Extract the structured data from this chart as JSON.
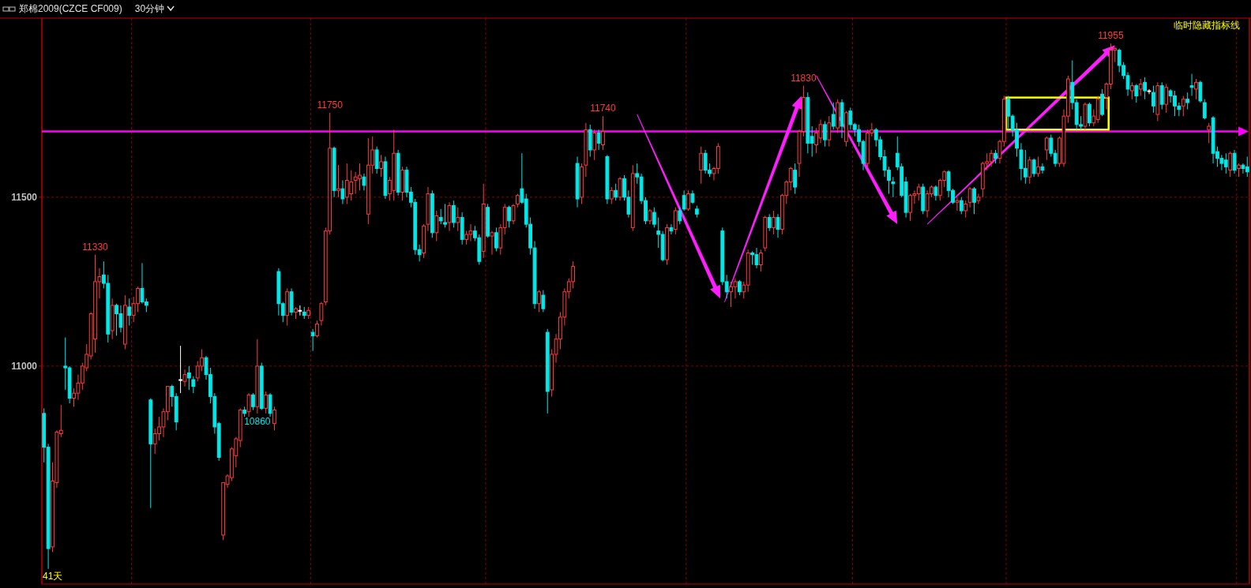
{
  "chart_data": {
    "type": "candlestick",
    "title": "郑棉2009(CZCE CF009)",
    "subtitle": "30分钟",
    "categories": [
      null,
      null,
      null,
      null,
      null,
      null,
      null,
      null,
      null,
      null,
      null,
      null,
      null,
      null,
      null,
      null,
      null,
      null,
      null,
      null,
      null,
      null,
      null,
      null,
      null,
      null,
      null,
      null,
      null,
      null,
      null,
      null,
      null,
      null,
      null,
      null,
      null,
      null,
      null,
      null,
      null,
      null,
      null,
      null,
      null,
      null,
      null,
      null,
      null,
      null,
      null,
      null,
      null,
      null,
      null,
      null,
      null,
      null,
      null,
      null,
      null,
      null,
      null,
      null,
      null,
      null,
      null,
      null,
      null,
      null,
      null,
      null,
      null,
      null,
      null,
      null,
      null,
      null,
      null,
      null,
      null,
      null,
      null,
      null,
      null,
      null,
      null,
      null,
      null,
      null,
      null,
      null,
      null,
      null,
      null,
      null,
      null,
      null,
      null,
      null,
      null,
      null,
      null,
      null,
      null,
      null,
      null,
      null,
      null,
      null,
      null,
      null,
      null,
      null,
      null,
      null,
      null,
      null,
      null,
      null,
      null,
      null,
      null,
      null,
      null,
      null,
      null,
      null,
      null,
      null,
      null,
      null,
      null,
      null,
      null,
      null,
      null,
      null,
      null,
      null,
      null,
      null,
      null,
      null,
      null,
      null,
      null,
      null,
      null,
      null,
      null,
      null,
      null,
      null,
      null,
      null,
      null,
      null,
      null,
      null,
      null,
      null,
      null,
      null,
      null,
      null,
      null,
      null,
      null,
      null,
      null,
      null,
      null,
      null,
      null,
      null,
      null,
      null,
      null,
      null,
      null,
      null,
      null,
      null,
      null,
      null,
      null,
      null,
      null,
      null,
      null,
      null,
      null,
      null,
      null,
      null,
      null,
      null,
      null,
      null,
      null,
      null,
      null,
      null,
      null,
      null,
      null,
      null,
      null,
      null,
      null,
      null,
      null,
      null,
      null,
      null,
      null,
      null,
      null,
      null,
      null,
      null,
      null,
      null,
      null,
      null,
      null,
      null,
      null,
      null,
      null,
      null,
      null,
      null,
      null,
      null,
      null,
      null,
      null,
      null,
      null,
      null,
      null,
      null,
      null,
      null,
      null,
      null,
      null,
      null,
      null,
      null,
      null,
      null,
      null,
      null,
      null,
      null,
      null,
      null,
      null,
      null,
      null,
      null,
      null,
      null,
      null,
      null,
      null,
      null,
      null,
      null,
      null,
      null,
      null,
      null,
      null,
      null,
      null,
      null,
      null,
      null,
      null
    ],
    "ohlc": [
      [
        10860,
        10875,
        10715,
        10760
      ],
      [
        10760,
        10770,
        10400,
        10460
      ],
      [
        10465,
        10715,
        10450,
        10660
      ],
      [
        10655,
        10810,
        10640,
        10805
      ],
      [
        10800,
        10885,
        10790,
        10810
      ],
      [
        11000,
        11085,
        10930,
        10995
      ],
      [
        10995,
        11000,
        10890,
        10905
      ],
      [
        10905,
        10935,
        10880,
        10920
      ],
      [
        10920,
        10975,
        10900,
        10950
      ],
      [
        10950,
        11010,
        10930,
        11000
      ],
      [
        10995,
        11065,
        10985,
        11035
      ],
      [
        11030,
        11160,
        11020,
        11155
      ],
      [
        11080,
        11330,
        11040,
        11250
      ],
      [
        11250,
        11290,
        11200,
        11265
      ],
      [
        11270,
        11310,
        11230,
        11245
      ],
      [
        11245,
        11270,
        11070,
        11095
      ],
      [
        11105,
        11200,
        11080,
        11180
      ],
      [
        11180,
        11185,
        11090,
        11155
      ],
      [
        11155,
        11180,
        11100,
        11115
      ],
      [
        11065,
        11210,
        11050,
        11180
      ],
      [
        11175,
        11200,
        11120,
        11150
      ],
      [
        11150,
        11205,
        11130,
        11185
      ],
      [
        11185,
        11235,
        11160,
        11230
      ],
      [
        11230,
        11305,
        11185,
        11190
      ],
      [
        11190,
        11200,
        11160,
        11180
      ],
      [
        10900,
        10905,
        10580,
        10770
      ],
      [
        10770,
        10815,
        10740,
        10800
      ],
      [
        10800,
        10850,
        10780,
        10820
      ],
      [
        10820,
        10875,
        10790,
        10865
      ],
      [
        10865,
        10940,
        10840,
        10940
      ],
      [
        10940,
        10945,
        10880,
        10910
      ],
      [
        10910,
        10920,
        10810,
        10835
      ],
      [
        10960,
        11060,
        10920,
        10960
      ],
      [
        10955,
        10990,
        10940,
        10975
      ],
      [
        10980,
        11000,
        10930,
        10965
      ],
      [
        10960,
        10970,
        10920,
        10940
      ],
      [
        10965,
        11015,
        10955,
        11000
      ],
      [
        11000,
        11050,
        10985,
        11025
      ],
      [
        11025,
        11030,
        10960,
        10975
      ],
      [
        10975,
        10995,
        10890,
        10910
      ],
      [
        10910,
        10920,
        10800,
        10820
      ],
      [
        10830,
        10835,
        10720,
        10730
      ],
      [
        10500,
        10655,
        10485,
        10655
      ],
      [
        10650,
        10680,
        10640,
        10675
      ],
      [
        10670,
        10760,
        10660,
        10755
      ],
      [
        10735,
        10790,
        10700,
        10785
      ],
      [
        10780,
        10875,
        10760,
        10870
      ],
      [
        10870,
        10880,
        10850,
        10860
      ],
      [
        10865,
        10920,
        10850,
        10915
      ],
      [
        10915,
        10920,
        10870,
        10880
      ],
      [
        10880,
        11080,
        10860,
        11000
      ],
      [
        11000,
        11010,
        10870,
        10875
      ],
      [
        10875,
        10925,
        10860,
        10915
      ],
      [
        10915,
        10920,
        10850,
        10860
      ],
      [
        10830,
        10880,
        10810,
        10870
      ],
      [
        11280,
        11290,
        11150,
        11185
      ],
      [
        11185,
        11190,
        11130,
        11150
      ],
      [
        11150,
        11230,
        11120,
        11220
      ],
      [
        11220,
        11230,
        11150,
        11160
      ],
      [
        11160,
        11175,
        11140,
        11170
      ],
      [
        11165,
        11180,
        11150,
        11165
      ],
      [
        11160,
        11175,
        11140,
        11150
      ],
      [
        11150,
        11175,
        11140,
        11165
      ],
      [
        11100,
        11110,
        11045,
        11090
      ],
      [
        11090,
        11135,
        11085,
        11125
      ],
      [
        11135,
        11190,
        11120,
        11185
      ],
      [
        11190,
        11410,
        11180,
        11400
      ],
      [
        11400,
        11750,
        11390,
        11645
      ],
      [
        11645,
        11650,
        11500,
        11520
      ],
      [
        11520,
        11595,
        11500,
        11525
      ],
      [
        11525,
        11550,
        11480,
        11495
      ],
      [
        11500,
        11600,
        11480,
        11550
      ],
      [
        11510,
        11580,
        11490,
        11545
      ],
      [
        11550,
        11575,
        11510,
        11560
      ],
      [
        11555,
        11600,
        11520,
        11565
      ],
      [
        11560,
        11570,
        11520,
        11535
      ],
      [
        11450,
        11675,
        11420,
        11595
      ],
      [
        11595,
        11680,
        11570,
        11640
      ],
      [
        11640,
        11650,
        11570,
        11585
      ],
      [
        11585,
        11625,
        11560,
        11605
      ],
      [
        11605,
        11620,
        11495,
        11505
      ],
      [
        11510,
        11560,
        11490,
        11550
      ],
      [
        11520,
        11700,
        11490,
        11630
      ],
      [
        11630,
        11640,
        11505,
        11515
      ],
      [
        11515,
        11590,
        11490,
        11580
      ],
      [
        11580,
        11590,
        11500,
        11515
      ],
      [
        11515,
        11530,
        11470,
        11485
      ],
      [
        11485,
        11495,
        11330,
        11345
      ],
      [
        11345,
        11360,
        11310,
        11330
      ],
      [
        11335,
        11420,
        11320,
        11415
      ],
      [
        11420,
        11530,
        11400,
        11510
      ],
      [
        11510,
        11520,
        11380,
        11395
      ],
      [
        11395,
        11460,
        11370,
        11445
      ],
      [
        11440,
        11465,
        11420,
        11430
      ],
      [
        11425,
        11480,
        11410,
        11420
      ],
      [
        11425,
        11485,
        11400,
        11475
      ],
      [
        11475,
        11490,
        11410,
        11425
      ],
      [
        11425,
        11470,
        11400,
        11440
      ],
      [
        11440,
        11455,
        11360,
        11375
      ],
      [
        11375,
        11400,
        11360,
        11390
      ],
      [
        11390,
        11420,
        11370,
        11400
      ],
      [
        11400,
        11415,
        11370,
        11380
      ],
      [
        11380,
        11390,
        11300,
        11310
      ],
      [
        11340,
        11540,
        11320,
        11480
      ],
      [
        11470,
        11480,
        11380,
        11385
      ],
      [
        11385,
        11400,
        11330,
        11395
      ],
      [
        11395,
        11410,
        11340,
        11350
      ],
      [
        11350,
        11420,
        11330,
        11410
      ],
      [
        11410,
        11480,
        11390,
        11470
      ],
      [
        11470,
        11475,
        11410,
        11430
      ],
      [
        11430,
        11480,
        11420,
        11475
      ],
      [
        11480,
        11510,
        11470,
        11505
      ],
      [
        11525,
        11630,
        11480,
        11485
      ],
      [
        11495,
        11510,
        11410,
        11420
      ],
      [
        11420,
        11440,
        11330,
        11350
      ],
      [
        11350,
        11370,
        11170,
        11185
      ],
      [
        11185,
        11225,
        11160,
        11220
      ],
      [
        11210,
        11225,
        11160,
        11170
      ],
      [
        11100,
        11110,
        10860,
        10925
      ],
      [
        10930,
        11050,
        10910,
        11035
      ],
      [
        11035,
        11095,
        11010,
        11080
      ],
      [
        11080,
        11160,
        11050,
        11145
      ],
      [
        11145,
        11230,
        11120,
        11220
      ],
      [
        11220,
        11260,
        11200,
        11250
      ],
      [
        11250,
        11310,
        11230,
        11295
      ],
      [
        11600,
        11620,
        11470,
        11495
      ],
      [
        11500,
        11600,
        11480,
        11590
      ],
      [
        11595,
        11720,
        11560,
        11700
      ],
      [
        11700,
        11715,
        11620,
        11640
      ],
      [
        11640,
        11700,
        11610,
        11690
      ],
      [
        11690,
        11700,
        11640,
        11660
      ],
      [
        11655,
        11740,
        11640,
        11695
      ],
      [
        11620,
        11625,
        11480,
        11495
      ],
      [
        11495,
        11530,
        11480,
        11520
      ],
      [
        11520,
        11540,
        11490,
        11500
      ],
      [
        11500,
        11560,
        11490,
        11555
      ],
      [
        11555,
        11565,
        11490,
        11500
      ],
      [
        11500,
        11520,
        11440,
        11450
      ],
      [
        11410,
        11595,
        11400,
        11570
      ],
      [
        11570,
        11600,
        11540,
        11560
      ],
      [
        11560,
        11570,
        11480,
        11490
      ],
      [
        11490,
        11500,
        11420,
        11430
      ],
      [
        11430,
        11465,
        11420,
        11460
      ],
      [
        11455,
        11470,
        11410,
        11420
      ],
      [
        11400,
        11440,
        11350,
        11390
      ],
      [
        11390,
        11400,
        11310,
        11315
      ],
      [
        11315,
        11420,
        11300,
        11410
      ],
      [
        11410,
        11420,
        11390,
        11400
      ],
      [
        11405,
        11470,
        11390,
        11460
      ],
      [
        11460,
        11470,
        11420,
        11430
      ],
      [
        11505,
        11520,
        11460,
        11465
      ],
      [
        11465,
        11520,
        11460,
        11510
      ],
      [
        11510,
        11520,
        11480,
        11485
      ],
      [
        11465,
        11475,
        11440,
        11450
      ],
      [
        11580,
        11650,
        11540,
        11630
      ],
      [
        11630,
        11640,
        11570,
        11580
      ],
      [
        11580,
        11600,
        11560,
        11570
      ],
      [
        11570,
        11590,
        11550,
        11585
      ],
      [
        11585,
        11660,
        11570,
        11650
      ],
      [
        11400,
        11410,
        11240,
        11250
      ],
      [
        11250,
        11270,
        11200,
        11220
      ],
      [
        11220,
        11250,
        11175,
        11235
      ],
      [
        11235,
        11260,
        11200,
        11250
      ],
      [
        11250,
        11255,
        11210,
        11220
      ],
      [
        11220,
        11250,
        11200,
        11240
      ],
      [
        11240,
        11345,
        11220,
        11335
      ],
      [
        11335,
        11340,
        11300,
        11330
      ],
      [
        11330,
        11350,
        11290,
        11300
      ],
      [
        11300,
        11345,
        11280,
        11335
      ],
      [
        11350,
        11445,
        11340,
        11440
      ],
      [
        11440,
        11450,
        11400,
        11410
      ],
      [
        11410,
        11460,
        11390,
        11440
      ],
      [
        11440,
        11450,
        11380,
        11405
      ],
      [
        11405,
        11510,
        11390,
        11505
      ],
      [
        11505,
        11550,
        11480,
        11545
      ],
      [
        11545,
        11590,
        11520,
        11585
      ],
      [
        11580,
        11600,
        11510,
        11530
      ],
      [
        11600,
        11700,
        11560,
        11695
      ],
      [
        11695,
        11830,
        11680,
        11795
      ],
      [
        11795,
        11810,
        11630,
        11660
      ],
      [
        11680,
        11710,
        11620,
        11660
      ],
      [
        11655,
        11705,
        11630,
        11690
      ],
      [
        11675,
        11730,
        11660,
        11715
      ],
      [
        11715,
        11725,
        11650,
        11670
      ],
      [
        11670,
        11740,
        11650,
        11720
      ],
      [
        11745,
        11780,
        11700,
        11710
      ],
      [
        11705,
        11790,
        11690,
        11780
      ],
      [
        11780,
        11790,
        11675,
        11710
      ],
      [
        11665,
        11755,
        11650,
        11750
      ],
      [
        11755,
        11765,
        11700,
        11715
      ],
      [
        11715,
        11720,
        11680,
        11700
      ],
      [
        11700,
        11715,
        11650,
        11665
      ],
      [
        11665,
        11670,
        11580,
        11600
      ],
      [
        11600,
        11700,
        11590,
        11690
      ],
      [
        11690,
        11720,
        11680,
        11700
      ],
      [
        11700,
        11705,
        11650,
        11670
      ],
      [
        11670,
        11680,
        11610,
        11620
      ],
      [
        11620,
        11640,
        11560,
        11580
      ],
      [
        11580,
        11590,
        11510,
        11550
      ],
      [
        11545,
        11560,
        11500,
        11540
      ],
      [
        11630,
        11680,
        11580,
        11590
      ],
      [
        11590,
        11600,
        11500,
        11505
      ],
      [
        11545,
        11560,
        11440,
        11455
      ],
      [
        11455,
        11510,
        11430,
        11505
      ],
      [
        11505,
        11520,
        11480,
        11510
      ],
      [
        11510,
        11540,
        11490,
        11530
      ],
      [
        11530,
        11540,
        11450,
        11460
      ],
      [
        11460,
        11520,
        11440,
        11510
      ],
      [
        11510,
        11535,
        11500,
        11530
      ],
      [
        11530,
        11535,
        11490,
        11505
      ],
      [
        11505,
        11555,
        11490,
        11550
      ],
      [
        11550,
        11580,
        11530,
        11575
      ],
      [
        11575,
        11580,
        11500,
        11520
      ],
      [
        11520,
        11525,
        11480,
        11485
      ],
      [
        11485,
        11500,
        11460,
        11490
      ],
      [
        11490,
        11500,
        11450,
        11460
      ],
      [
        11460,
        11490,
        11440,
        11480
      ],
      [
        11485,
        11530,
        11470,
        11525
      ],
      [
        11525,
        11530,
        11450,
        11485
      ],
      [
        11490,
        11510,
        11480,
        11500
      ],
      [
        11525,
        11605,
        11500,
        11600
      ],
      [
        11600,
        11630,
        11580,
        11605
      ],
      [
        11605,
        11640,
        11590,
        11630
      ],
      [
        11630,
        11640,
        11600,
        11615
      ],
      [
        11615,
        11670,
        11600,
        11665
      ],
      [
        11665,
        11800,
        11650,
        11790
      ],
      [
        11790,
        11800,
        11700,
        11740
      ],
      [
        11740,
        11745,
        11680,
        11700
      ],
      [
        11700,
        11720,
        11620,
        11645
      ],
      [
        11640,
        11660,
        11550,
        11585
      ],
      [
        11585,
        11640,
        11540,
        11560
      ],
      [
        11560,
        11620,
        11540,
        11610
      ],
      [
        11610,
        11615,
        11560,
        11570
      ],
      [
        11570,
        11620,
        11560,
        11590
      ],
      [
        11590,
        11600,
        11570,
        11580
      ],
      [
        11640,
        11680,
        11610,
        11675
      ],
      [
        11675,
        11685,
        11620,
        11630
      ],
      [
        11630,
        11640,
        11590,
        11600
      ],
      [
        11600,
        11680,
        11590,
        11675
      ],
      [
        11600,
        11760,
        11590,
        11740
      ],
      [
        11740,
        11860,
        11720,
        11850
      ],
      [
        11840,
        11905,
        11760,
        11780
      ],
      [
        11780,
        11790,
        11700,
        11715
      ],
      [
        11715,
        11740,
        11700,
        11710
      ],
      [
        11710,
        11780,
        11700,
        11775
      ],
      [
        11775,
        11780,
        11710,
        11720
      ],
      [
        11720,
        11760,
        11710,
        11740
      ],
      [
        11730,
        11800,
        11720,
        11790
      ],
      [
        11805,
        11820,
        11740,
        11745
      ],
      [
        11795,
        11840,
        11760,
        11835
      ],
      [
        11835,
        11955,
        11820,
        11935
      ],
      [
        11935,
        11945,
        11900,
        11940
      ],
      [
        11935,
        11940,
        11870,
        11890
      ],
      [
        11890,
        11900,
        11850,
        11860
      ],
      [
        11860,
        11870,
        11800,
        11820
      ],
      [
        11815,
        11840,
        11790,
        11830
      ],
      [
        11830,
        11835,
        11780,
        11800
      ],
      [
        11820,
        11850,
        11800,
        11835
      ],
      [
        11840,
        11855,
        11790,
        11815
      ],
      [
        11815,
        11820,
        11805,
        11815
      ],
      [
        11810,
        11830,
        11750,
        11770
      ],
      [
        11745,
        11840,
        11725,
        11830
      ],
      [
        11830,
        11840,
        11760,
        11775
      ],
      [
        11775,
        11835,
        11750,
        11825
      ],
      [
        11815,
        11820,
        11780,
        11800
      ],
      [
        11800,
        11815,
        11740,
        11770
      ],
      [
        11770,
        11780,
        11740,
        11760
      ],
      [
        11770,
        11800,
        11740,
        11790
      ],
      [
        11790,
        11810,
        11760,
        11780
      ],
      [
        11830,
        11865,
        11800,
        11825
      ],
      [
        11820,
        11850,
        11790,
        11840
      ],
      [
        11840,
        11845,
        11780,
        11785
      ],
      [
        11780,
        11790,
        11730,
        11735
      ],
      [
        11700,
        11720,
        11660,
        11710
      ],
      [
        11735,
        11740,
        11600,
        11630
      ],
      [
        11635,
        11650,
        11590,
        11615
      ],
      [
        11615,
        11625,
        11580,
        11600
      ],
      [
        11610,
        11630,
        11570,
        11590
      ],
      [
        11580,
        11635,
        11560,
        11630
      ],
      [
        11630,
        11640,
        11570,
        11580
      ],
      [
        11585,
        11600,
        11560,
        11595
      ],
      [
        11595,
        11600,
        11570,
        11585
      ],
      [
        11590,
        11620,
        11560,
        11575
      ]
    ],
    "ylim": [
      10355,
      12030
    ],
    "yticks": [
      11000,
      11500
    ],
    "grid": "y",
    "tick_labels": "y",
    "ref_lines": [
      {
        "axis": "y",
        "value": 11695,
        "color": "#ff00ff"
      }
    ],
    "annotations": [
      {
        "text": "11330",
        "y": 11330
      },
      {
        "text": "11750",
        "y": 11750
      },
      {
        "text": "10860",
        "y": 10860
      },
      {
        "text": "11740",
        "y": 11740
      },
      {
        "text": "11830",
        "y": 11830
      },
      {
        "text": "11955",
        "y": 11955
      },
      "临时隐藏指标线",
      "41天"
    ]
  }
}
